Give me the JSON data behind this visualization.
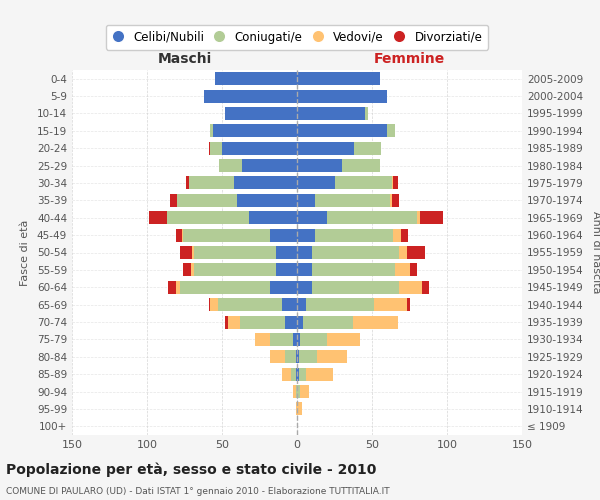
{
  "age_groups": [
    "100+",
    "95-99",
    "90-94",
    "85-89",
    "80-84",
    "75-79",
    "70-74",
    "65-69",
    "60-64",
    "55-59",
    "50-54",
    "45-49",
    "40-44",
    "35-39",
    "30-34",
    "25-29",
    "20-24",
    "15-19",
    "10-14",
    "5-9",
    "0-4"
  ],
  "birth_years": [
    "≤ 1909",
    "1910-1914",
    "1915-1919",
    "1920-1924",
    "1925-1929",
    "1930-1934",
    "1935-1939",
    "1940-1944",
    "1945-1949",
    "1950-1954",
    "1955-1959",
    "1960-1964",
    "1965-1969",
    "1970-1974",
    "1975-1979",
    "1980-1984",
    "1985-1989",
    "1990-1994",
    "1995-1999",
    "2000-2004",
    "2005-2009"
  ],
  "maschi": {
    "celibi": [
      0,
      0,
      0,
      1,
      1,
      3,
      8,
      10,
      18,
      14,
      14,
      18,
      32,
      40,
      42,
      37,
      50,
      56,
      48,
      62,
      55
    ],
    "coniugati": [
      0,
      0,
      1,
      3,
      7,
      15,
      30,
      43,
      60,
      55,
      55,
      58,
      55,
      40,
      30,
      15,
      8,
      2,
      0,
      0,
      0
    ],
    "vedovi": [
      0,
      1,
      2,
      6,
      10,
      10,
      8,
      5,
      3,
      2,
      1,
      1,
      0,
      0,
      0,
      0,
      0,
      0,
      0,
      0,
      0
    ],
    "divorziati": [
      0,
      0,
      0,
      0,
      0,
      0,
      2,
      1,
      5,
      5,
      8,
      4,
      12,
      5,
      2,
      0,
      1,
      0,
      0,
      0,
      0
    ]
  },
  "femmine": {
    "nubili": [
      0,
      0,
      0,
      1,
      1,
      2,
      4,
      6,
      10,
      10,
      10,
      12,
      20,
      12,
      25,
      30,
      38,
      60,
      45,
      60,
      55
    ],
    "coniugate": [
      0,
      0,
      2,
      5,
      12,
      18,
      33,
      45,
      58,
      55,
      58,
      52,
      60,
      50,
      38,
      25,
      18,
      5,
      2,
      0,
      0
    ],
    "vedove": [
      0,
      3,
      6,
      18,
      20,
      22,
      30,
      22,
      15,
      10,
      5,
      5,
      2,
      1,
      1,
      0,
      0,
      0,
      0,
      0,
      0
    ],
    "divorziate": [
      0,
      0,
      0,
      0,
      0,
      0,
      0,
      2,
      5,
      5,
      12,
      5,
      15,
      5,
      3,
      0,
      0,
      0,
      0,
      0,
      0
    ]
  },
  "colors": {
    "celibi": "#4472c4",
    "coniugati": "#b2cc96",
    "vedovi": "#ffc272",
    "divorziati": "#cc2222"
  },
  "legend_labels": [
    "Celibi/Nubili",
    "Coniugati/e",
    "Vedovi/e",
    "Divorziati/e"
  ],
  "title": "Popolazione per età, sesso e stato civile - 2010",
  "subtitle": "COMUNE DI PAULARO (UD) - Dati ISTAT 1° gennaio 2010 - Elaborazione TUTTITALIA.IT",
  "xlabel_left": "Maschi",
  "xlabel_right": "Femmine",
  "ylabel_left": "Fasce di età",
  "ylabel_right": "Anni di nascita",
  "xlim": 150,
  "bg_color": "#f5f5f5",
  "plot_bg": "#ffffff",
  "grid_color": "#cccccc"
}
